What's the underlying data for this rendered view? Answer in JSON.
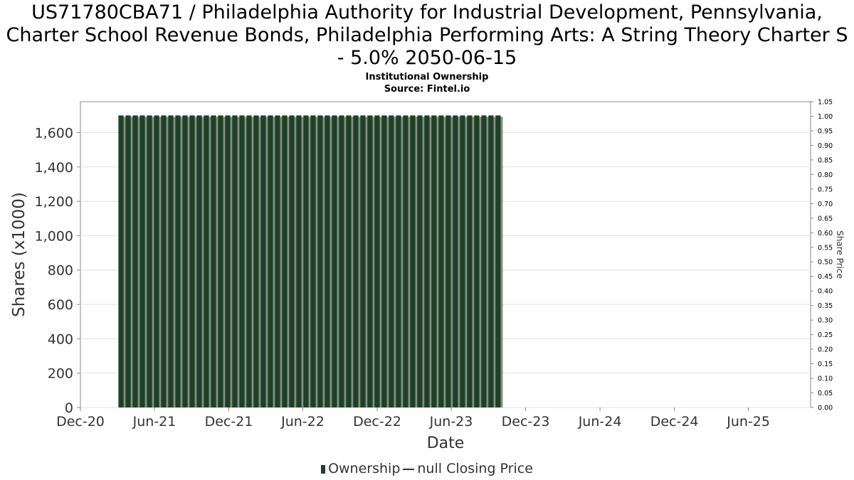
{
  "header": {
    "title": "US71780CBA71 / Philadelphia Authority for Industrial Development, Pennsylvania, Charter School Revenue Bonds, Philadelphia Performing Arts: A String Theory Charter S - 5.0% 2050-06-15",
    "subtitle": "Institutional Ownership",
    "source": "Source: Fintel.io"
  },
  "colors": {
    "bar": "#1b4224",
    "bar_shadow": "#8a8a8a",
    "grid": "#e2e2e2",
    "axis": "#888888"
  },
  "chart_data": {
    "type": "bar",
    "title": "US71780CBA71 / Philadelphia Authority for Industrial Development, Pennsylvania, Charter School Revenue Bonds, Philadelphia Performing Arts: A String Theory Charter S - 5.0% 2050-06-15",
    "subtitle": "Institutional Ownership",
    "xlabel": "Date",
    "ylabel": "Shares (x1000)",
    "y2label": "Share Price",
    "x_start": "2021-03-01",
    "bar_interval_days": 7,
    "x_range": [
      "2020-12-01",
      "2025-11-01"
    ],
    "xticks": [
      "Dec-20",
      "Jun-21",
      "Dec-21",
      "Jun-22",
      "Dec-22",
      "Jun-23",
      "Dec-23",
      "Jun-24",
      "Dec-24",
      "Jun-25"
    ],
    "xtick_dates": [
      "2020-12-01",
      "2021-06-01",
      "2021-12-01",
      "2022-06-01",
      "2022-12-01",
      "2023-06-01",
      "2023-12-01",
      "2024-06-01",
      "2024-12-01",
      "2025-06-01"
    ],
    "ylim": [
      0,
      1780
    ],
    "yticks": [
      0,
      200,
      400,
      600,
      800,
      1000,
      1200,
      1400,
      1600
    ],
    "ytick_labels": [
      "0",
      "200",
      "400",
      "600",
      "800",
      "1,000",
      "1,200",
      "1,400",
      "1,600"
    ],
    "y2lim": [
      0,
      1.05
    ],
    "y2ticks": [
      "0.00",
      "0.05",
      "0.10",
      "0.15",
      "0.20",
      "0.25",
      "0.30",
      "0.35",
      "0.40",
      "0.45",
      "0.50",
      "0.55",
      "0.60",
      "0.65",
      "0.70",
      "0.75",
      "0.80",
      "0.85",
      "0.90",
      "0.95",
      "1.00",
      "1.05"
    ],
    "series": [
      {
        "name": "Ownership",
        "values": [
          1700,
          1700,
          1700,
          1700,
          1700,
          1700,
          1700,
          1700,
          1700,
          1700,
          1700,
          1700,
          1700,
          1700,
          1700,
          1700,
          1700,
          1700,
          1700,
          1700,
          1700,
          1700,
          1700,
          1700,
          1700,
          1700,
          1700,
          1700,
          1700,
          1700,
          1700,
          1700,
          1700,
          1700,
          1700,
          1700,
          1700,
          1700,
          1700,
          1700,
          1700,
          1700,
          1700,
          1700,
          1700,
          1700,
          1700,
          1700,
          1700,
          1700,
          1700,
          1700,
          1700,
          1700
        ]
      },
      {
        "name": "null Closing Price",
        "values": []
      }
    ],
    "grid": true,
    "legend_position": "bottom-center"
  },
  "legend": {
    "ownership_label": "Ownership",
    "price_label": "null Closing Price"
  }
}
